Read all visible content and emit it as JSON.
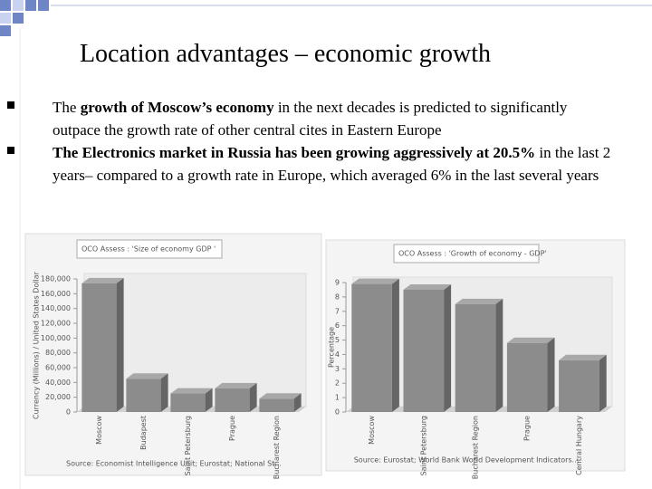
{
  "slide": {
    "title": "Location advantages – economic growth",
    "bullets": [
      {
        "segments": [
          {
            "text": "The ",
            "bold": false
          },
          {
            "text": "growth of Moscow’s economy",
            "bold": true
          },
          {
            "text": " in the next decades is predicted to significantly outpace the growth rate of other central cites in Eastern Europe",
            "bold": false
          }
        ]
      },
      {
        "segments": [
          {
            "text": "The Electronics market in Russia has been growing aggressively at 20.5%",
            "bold": true
          },
          {
            "text": " in the last 2 years– compared to a growth rate in Europe, which averaged 6% in the last several years",
            "bold": false
          }
        ]
      }
    ]
  },
  "chart_data": [
    {
      "type": "bar3d",
      "title": "OCO Assess : 'Size of economy GDP '",
      "y_label": "Currency (Millions) / United States Dollar",
      "categories": [
        "Moscow",
        "Budapest",
        "Saint Petersburg",
        "Prague",
        "Bucharest Region"
      ],
      "values": [
        174000,
        45000,
        25000,
        32000,
        18000
      ],
      "color": "#8c8c8c",
      "ylim": [
        0,
        180000
      ],
      "yticks": [
        0,
        {
          "value": 20000,
          "label": "20,000"
        },
        {
          "value": 40000,
          "label": "40,000"
        },
        {
          "value": 60000,
          "label": "60,000"
        },
        {
          "value": 80000,
          "label": "80,000"
        },
        {
          "value": 100000,
          "label": "100,000"
        },
        {
          "value": 120000,
          "label": "120,000"
        },
        {
          "value": 140000,
          "label": "140,000"
        },
        {
          "value": 160000,
          "label": "160,000"
        },
        {
          "value": 180000,
          "label": "180,000"
        }
      ],
      "source": "Source: Economist Intelligence Unit; Eurostat; National St..."
    },
    {
      "type": "bar3d",
      "title": "OCO Assess : 'Growth of economy - GDP'",
      "y_label": "Percentage",
      "categories": [
        "Moscow",
        "Saint Petersburg",
        "Bucharest Region",
        "Prague",
        "Central Hungary"
      ],
      "values": [
        8.9,
        8.5,
        7.5,
        4.8,
        3.6
      ],
      "color": "#8c8c8c",
      "ylim": [
        0,
        9
      ],
      "yticks": [
        0,
        1,
        2,
        3,
        4,
        5,
        6,
        7,
        8,
        9
      ],
      "source": "Source: Eurostat; World Bank World Development Indicators..."
    }
  ]
}
